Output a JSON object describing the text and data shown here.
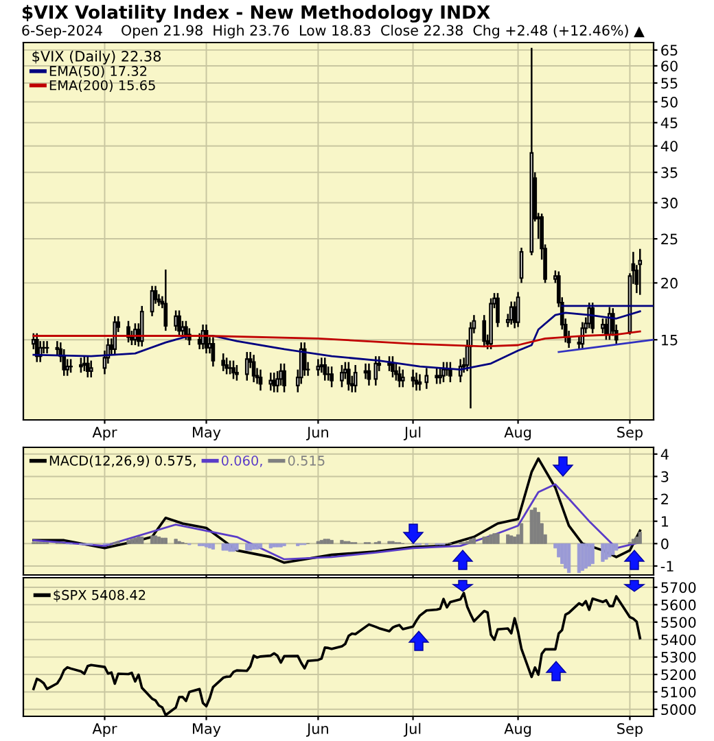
{
  "chart_data": [
    {
      "type": "candlestick",
      "title": "$VIX Volatility Index - New Methodology INDX",
      "subtitle": "6-Sep-2024    Open 21.98  High 23.76  Low 18.83  Close 22.38  Chg +2.48 (+12.46%) ▲",
      "legend_title": "$VIX (Daily) 22.38",
      "log": true,
      "grid": true,
      "legend": "top left",
      "color": "#000000",
      "x": [
        "2024-03-11",
        "2024-03-12",
        "2024-03-13",
        "2024-03-14",
        "2024-03-15",
        "2024-03-18",
        "2024-03-19",
        "2024-03-20",
        "2024-03-21",
        "2024-03-22",
        "2024-03-25",
        "2024-03-26",
        "2024-03-27",
        "2024-03-28",
        "2024-04-01",
        "2024-04-02",
        "2024-04-03",
        "2024-04-04",
        "2024-04-05",
        "2024-04-08",
        "2024-04-09",
        "2024-04-10",
        "2024-04-11",
        "2024-04-12",
        "2024-04-15",
        "2024-04-16",
        "2024-04-17",
        "2024-04-18",
        "2024-04-19",
        "2024-04-22",
        "2024-04-23",
        "2024-04-24",
        "2024-04-25",
        "2024-04-26",
        "2024-04-29",
        "2024-04-30",
        "2024-05-01",
        "2024-05-02",
        "2024-05-03",
        "2024-05-06",
        "2024-05-07",
        "2024-05-08",
        "2024-05-09",
        "2024-05-10",
        "2024-05-13",
        "2024-05-14",
        "2024-05-15",
        "2024-05-16",
        "2024-05-17",
        "2024-05-20",
        "2024-05-21",
        "2024-05-22",
        "2024-05-23",
        "2024-05-24",
        "2024-05-28",
        "2024-05-29",
        "2024-05-30",
        "2024-05-31",
        "2024-06-03",
        "2024-06-04",
        "2024-06-05",
        "2024-06-06",
        "2024-06-07",
        "2024-06-10",
        "2024-06-11",
        "2024-06-12",
        "2024-06-13",
        "2024-06-14",
        "2024-06-17",
        "2024-06-18",
        "2024-06-20",
        "2024-06-21",
        "2024-06-24",
        "2024-06-25",
        "2024-06-26",
        "2024-06-27",
        "2024-06-28",
        "2024-07-01",
        "2024-07-02",
        "2024-07-03",
        "2024-07-05",
        "2024-07-08",
        "2024-07-09",
        "2024-07-10",
        "2024-07-11",
        "2024-07-12",
        "2024-07-15",
        "2024-07-16",
        "2024-07-17",
        "2024-07-18",
        "2024-07-19",
        "2024-07-22",
        "2024-07-23",
        "2024-07-24",
        "2024-07-25",
        "2024-07-26",
        "2024-07-29",
        "2024-07-30",
        "2024-07-31",
        "2024-08-01",
        "2024-08-02",
        "2024-08-05",
        "2024-08-06",
        "2024-08-07",
        "2024-08-08",
        "2024-08-09",
        "2024-08-12",
        "2024-08-13",
        "2024-08-14",
        "2024-08-15",
        "2024-08-16",
        "2024-08-19",
        "2024-08-20",
        "2024-08-21",
        "2024-08-22",
        "2024-08-23",
        "2024-08-26",
        "2024-08-27",
        "2024-08-28",
        "2024-08-29",
        "2024-08-30",
        "2024-09-03",
        "2024-09-04",
        "2024-09-05",
        "2024-09-06"
      ],
      "ohlc": [
        [
          14.7,
          15.5,
          14.3,
          15.0
        ],
        [
          15.0,
          15.5,
          13.4,
          13.8
        ],
        [
          13.8,
          14.9,
          13.4,
          14.4
        ],
        [
          14.4,
          14.9,
          14.0,
          14.4
        ],
        [
          14.4,
          14.9,
          14.0,
          14.4
        ],
        [
          14.4,
          14.9,
          13.9,
          14.3
        ],
        [
          14.3,
          14.8,
          13.4,
          13.8
        ],
        [
          13.8,
          14.3,
          12.5,
          12.9
        ],
        [
          12.9,
          13.6,
          12.5,
          13.1
        ],
        [
          13.1,
          13.6,
          12.7,
          13.1
        ],
        [
          13.1,
          13.7,
          12.7,
          13.2
        ],
        [
          13.2,
          13.8,
          12.8,
          13.3
        ],
        [
          13.3,
          13.8,
          12.4,
          12.8
        ],
        [
          12.8,
          13.5,
          12.4,
          13.0
        ],
        [
          13.0,
          14.2,
          12.6,
          13.7
        ],
        [
          13.7,
          15.1,
          13.3,
          14.6
        ],
        [
          14.6,
          15.1,
          13.9,
          14.3
        ],
        [
          14.3,
          16.9,
          13.9,
          16.4
        ],
        [
          16.4,
          16.9,
          15.6,
          16.0
        ],
        [
          16.0,
          16.5,
          14.8,
          15.2
        ],
        [
          15.2,
          15.7,
          14.6,
          15.0
        ],
        [
          15.0,
          16.3,
          14.6,
          15.8
        ],
        [
          15.8,
          16.3,
          14.5,
          14.9
        ],
        [
          14.9,
          17.8,
          14.5,
          17.3
        ],
        [
          17.3,
          19.7,
          16.9,
          19.2
        ],
        [
          19.2,
          19.7,
          18.0,
          18.4
        ],
        [
          18.4,
          18.9,
          17.8,
          18.2
        ],
        [
          18.2,
          18.7,
          17.6,
          18.0
        ],
        [
          18.0,
          21.4,
          15.7,
          16.1
        ],
        [
          16.1,
          17.4,
          15.7,
          16.9
        ],
        [
          16.9,
          17.4,
          15.3,
          15.7
        ],
        [
          15.7,
          16.5,
          15.3,
          16.0
        ],
        [
          16.0,
          16.5,
          15.0,
          15.4
        ],
        [
          15.4,
          15.9,
          14.6,
          15.0
        ],
        [
          15.0,
          15.5,
          14.3,
          14.7
        ],
        [
          14.7,
          16.2,
          14.3,
          15.7
        ],
        [
          15.7,
          16.2,
          14.0,
          14.4
        ],
        [
          14.4,
          15.2,
          14.0,
          14.7
        ],
        [
          14.7,
          15.2,
          13.1,
          13.5
        ],
        [
          13.5,
          14.0,
          12.8,
          13.2
        ],
        [
          13.2,
          13.7,
          12.6,
          13.0
        ],
        [
          13.0,
          13.5,
          12.6,
          13.0
        ],
        [
          13.0,
          13.5,
          12.3,
          12.7
        ],
        [
          12.7,
          13.2,
          12.2,
          12.6
        ],
        [
          12.6,
          14.1,
          12.2,
          13.6
        ],
        [
          13.6,
          14.1,
          13.0,
          13.4
        ],
        [
          13.4,
          13.9,
          12.1,
          12.5
        ],
        [
          12.5,
          13.0,
          12.0,
          12.4
        ],
        [
          12.4,
          12.9,
          11.6,
          12.0
        ],
        [
          12.0,
          12.7,
          11.6,
          12.2
        ],
        [
          12.2,
          12.7,
          11.5,
          11.9
        ],
        [
          11.9,
          12.8,
          11.5,
          12.3
        ],
        [
          12.3,
          13.3,
          11.9,
          12.8
        ],
        [
          12.8,
          13.3,
          11.5,
          11.9
        ],
        [
          11.9,
          12.9,
          11.5,
          12.4
        ],
        [
          12.4,
          14.8,
          12.0,
          14.3
        ],
        [
          14.3,
          14.8,
          12.5,
          12.9
        ],
        [
          12.9,
          13.4,
          12.5,
          12.9
        ],
        [
          12.9,
          13.6,
          12.5,
          13.1
        ],
        [
          13.1,
          13.7,
          12.7,
          13.2
        ],
        [
          13.2,
          13.7,
          12.2,
          12.6
        ],
        [
          12.6,
          13.1,
          12.2,
          12.6
        ],
        [
          12.6,
          13.1,
          11.8,
          12.2
        ],
        [
          12.2,
          13.2,
          11.8,
          12.7
        ],
        [
          12.7,
          13.4,
          12.3,
          12.9
        ],
        [
          12.9,
          13.4,
          11.6,
          12.0
        ],
        [
          12.0,
          12.5,
          11.5,
          11.9
        ],
        [
          11.9,
          13.2,
          11.5,
          12.7
        ],
        [
          12.7,
          13.3,
          12.3,
          12.8
        ],
        [
          12.8,
          13.3,
          11.9,
          12.3
        ],
        [
          12.3,
          13.8,
          11.9,
          13.3
        ],
        [
          13.3,
          13.8,
          12.8,
          13.2
        ],
        [
          13.2,
          13.8,
          12.8,
          13.3
        ],
        [
          13.3,
          13.8,
          12.4,
          12.8
        ],
        [
          12.8,
          13.3,
          12.2,
          12.6
        ],
        [
          12.6,
          13.1,
          11.8,
          12.2
        ],
        [
          12.2,
          12.9,
          11.8,
          12.4
        ],
        [
          12.4,
          12.9,
          11.8,
          12.2
        ],
        [
          12.2,
          12.7,
          11.6,
          12.0
        ],
        [
          12.0,
          12.6,
          11.6,
          12.1
        ],
        [
          12.1,
          13.0,
          11.7,
          12.5
        ],
        [
          12.5,
          13.0,
          12.0,
          12.4
        ],
        [
          12.4,
          13.0,
          12.0,
          12.5
        ],
        [
          12.5,
          13.4,
          12.1,
          12.9
        ],
        [
          12.9,
          13.4,
          12.5,
          12.9
        ],
        [
          12.9,
          13.4,
          12.1,
          12.5
        ],
        [
          12.5,
          13.6,
          12.1,
          13.1
        ],
        [
          13.1,
          13.7,
          12.7,
          13.2
        ],
        [
          13.2,
          15.0,
          12.8,
          14.5
        ],
        [
          14.5,
          16.4,
          10.6,
          15.9
        ],
        [
          15.9,
          17.0,
          15.5,
          16.5
        ],
        [
          16.5,
          17.0,
          14.5,
          14.9
        ],
        [
          14.9,
          15.4,
          14.3,
          14.7
        ],
        [
          14.7,
          18.5,
          14.3,
          18.0
        ],
        [
          18.0,
          19.0,
          17.6,
          18.5
        ],
        [
          18.5,
          19.0,
          16.0,
          16.4
        ],
        [
          16.4,
          17.1,
          16.0,
          16.6
        ],
        [
          16.6,
          18.2,
          16.2,
          17.7
        ],
        [
          17.7,
          18.2,
          15.9,
          16.4
        ],
        [
          16.4,
          19.1,
          16.0,
          18.6
        ],
        [
          20.5,
          23.9,
          20.0,
          23.4
        ],
        [
          23.4,
          65.7,
          23.0,
          38.6
        ],
        [
          34.0,
          35.0,
          27.3,
          27.7
        ],
        [
          27.7,
          28.5,
          25.0,
          27.9
        ],
        [
          27.9,
          28.4,
          22.5,
          23.8
        ],
        [
          23.8,
          24.3,
          20.0,
          20.4
        ],
        [
          20.4,
          21.3,
          20.0,
          20.7
        ],
        [
          20.7,
          21.2,
          17.7,
          18.1
        ],
        [
          18.1,
          18.6,
          15.8,
          16.2
        ],
        [
          16.2,
          16.7,
          14.8,
          15.2
        ],
        [
          15.2,
          15.7,
          14.4,
          14.8
        ],
        [
          14.8,
          15.3,
          14.3,
          14.7
        ],
        [
          14.7,
          16.4,
          14.3,
          15.9
        ],
        [
          15.9,
          16.8,
          15.5,
          16.3
        ],
        [
          16.3,
          18.1,
          15.9,
          17.6
        ],
        [
          17.6,
          18.1,
          15.5,
          15.9
        ],
        [
          15.9,
          16.7,
          15.5,
          16.2
        ],
        [
          16.2,
          16.7,
          15.0,
          15.4
        ],
        [
          15.4,
          17.7,
          15.0,
          17.1
        ],
        [
          17.1,
          17.6,
          15.3,
          15.7
        ],
        [
          15.7,
          16.2,
          14.6,
          15.0
        ],
        [
          15.6,
          21.0,
          15.4,
          20.7
        ],
        [
          22.0,
          23.4,
          19.9,
          21.3
        ],
        [
          21.3,
          21.9,
          19.0,
          19.9
        ],
        [
          21.98,
          23.76,
          18.83,
          22.38
        ]
      ],
      "series": [
        {
          "name": "EMA(50) 17.32",
          "type": "line",
          "color": "#000080",
          "x": [
            "2024-03-11",
            "2024-03-28",
            "2024-04-10",
            "2024-04-19",
            "2024-04-26",
            "2024-05-03",
            "2024-05-10",
            "2024-05-24",
            "2024-06-07",
            "2024-06-21",
            "2024-07-03",
            "2024-07-15",
            "2024-07-24",
            "2024-08-01",
            "2024-08-05",
            "2024-08-07",
            "2024-08-12",
            "2024-08-15",
            "2024-08-22",
            "2024-08-30",
            "2024-09-06"
          ],
          "values": [
            13.9,
            13.8,
            14.0,
            14.8,
            15.3,
            15.3,
            14.9,
            14.3,
            13.8,
            13.5,
            13.1,
            12.9,
            13.3,
            14.2,
            14.6,
            15.8,
            17.0,
            17.2,
            17.0,
            16.7,
            17.32
          ]
        },
        {
          "name": "EMA(200) 15.65",
          "type": "line",
          "color": "#c00000",
          "x": [
            "2024-03-11",
            "2024-04-15",
            "2024-05-01",
            "2024-06-03",
            "2024-07-01",
            "2024-07-22",
            "2024-08-01",
            "2024-08-09",
            "2024-08-20",
            "2024-08-30",
            "2024-09-06"
          ],
          "values": [
            15.3,
            15.3,
            15.3,
            15.1,
            14.7,
            14.5,
            14.6,
            15.1,
            15.3,
            15.4,
            15.65
          ]
        },
        {
          "type": "line",
          "color": "#000080",
          "x": [
            "2024-08-14",
            "2024-09-10"
          ],
          "values": [
            17.8,
            17.8
          ]
        },
        {
          "type": "line",
          "color": "#3030c0",
          "x": [
            "2024-08-13",
            "2024-09-10"
          ],
          "values": [
            14.1,
            15.0
          ]
        }
      ],
      "xlim": [
        "2024-03-08",
        "2024-09-10"
      ],
      "ylim": [
        10,
        67.5
      ],
      "xticks": [
        {
          "value": "2024-04-01",
          "label": "Apr"
        },
        {
          "value": "2024-05-01",
          "label": "May"
        },
        {
          "value": "2024-06-03",
          "label": "Jun"
        },
        {
          "value": "2024-07-01",
          "label": "Jul"
        },
        {
          "value": "2024-08-01",
          "label": "Aug"
        },
        {
          "value": "2024-09-03",
          "label": "Sep"
        }
      ],
      "yticks": [
        15,
        20,
        25,
        30,
        35,
        40,
        45,
        50,
        55,
        60,
        65
      ]
    },
    {
      "type": "bar",
      "grid": true,
      "legend": "top left",
      "tick_labels": "y",
      "x": [
        "2024-03-11",
        "2024-03-12",
        "2024-03-13",
        "2024-03-14",
        "2024-03-15",
        "2024-03-18",
        "2024-03-19",
        "2024-03-20",
        "2024-03-21",
        "2024-03-22",
        "2024-03-25",
        "2024-03-26",
        "2024-03-27",
        "2024-03-28",
        "2024-04-01",
        "2024-04-02",
        "2024-04-03",
        "2024-04-04",
        "2024-04-05",
        "2024-04-08",
        "2024-04-09",
        "2024-04-10",
        "2024-04-11",
        "2024-04-12",
        "2024-04-15",
        "2024-04-16",
        "2024-04-17",
        "2024-04-18",
        "2024-04-19",
        "2024-04-22",
        "2024-04-23",
        "2024-04-24",
        "2024-04-25",
        "2024-04-26",
        "2024-04-29",
        "2024-04-30",
        "2024-05-01",
        "2024-05-02",
        "2024-05-03",
        "2024-05-06",
        "2024-05-07",
        "2024-05-08",
        "2024-05-09",
        "2024-05-10",
        "2024-05-13",
        "2024-05-14",
        "2024-05-15",
        "2024-05-16",
        "2024-05-17",
        "2024-05-20",
        "2024-05-21",
        "2024-05-22",
        "2024-05-23",
        "2024-05-24",
        "2024-05-28",
        "2024-05-29",
        "2024-05-30",
        "2024-05-31",
        "2024-06-03",
        "2024-06-04",
        "2024-06-05",
        "2024-06-06",
        "2024-06-07",
        "2024-06-10",
        "2024-06-11",
        "2024-06-12",
        "2024-06-13",
        "2024-06-14",
        "2024-06-17",
        "2024-06-18",
        "2024-06-20",
        "2024-06-21",
        "2024-06-24",
        "2024-06-25",
        "2024-06-26",
        "2024-06-27",
        "2024-06-28",
        "2024-07-01",
        "2024-07-02",
        "2024-07-03",
        "2024-07-05",
        "2024-07-08",
        "2024-07-09",
        "2024-07-10",
        "2024-07-11",
        "2024-07-12",
        "2024-07-15",
        "2024-07-16",
        "2024-07-17",
        "2024-07-18",
        "2024-07-19",
        "2024-07-22",
        "2024-07-23",
        "2024-07-24",
        "2024-07-25",
        "2024-07-26",
        "2024-07-29",
        "2024-07-30",
        "2024-07-31",
        "2024-08-01",
        "2024-08-02",
        "2024-08-05",
        "2024-08-06",
        "2024-08-07",
        "2024-08-08",
        "2024-08-09",
        "2024-08-12",
        "2024-08-13",
        "2024-08-14",
        "2024-08-15",
        "2024-08-16",
        "2024-08-19",
        "2024-08-20",
        "2024-08-21",
        "2024-08-22",
        "2024-08-23",
        "2024-08-26",
        "2024-08-27",
        "2024-08-28",
        "2024-08-29",
        "2024-08-30",
        "2024-09-03",
        "2024-09-04",
        "2024-09-05",
        "2024-09-06"
      ],
      "series": [
        {
          "name": "MACD(12,26,9) 0.575,",
          "type": "line",
          "color": "#000000",
          "x": [
            "2024-03-11",
            "2024-03-20",
            "2024-04-01",
            "2024-04-10",
            "2024-04-15",
            "2024-04-19",
            "2024-04-24",
            "2024-05-01",
            "2024-05-10",
            "2024-05-20",
            "2024-05-24",
            "2024-06-07",
            "2024-06-20",
            "2024-07-01",
            "2024-07-10",
            "2024-07-19",
            "2024-07-26",
            "2024-08-01",
            "2024-08-05",
            "2024-08-07",
            "2024-08-12",
            "2024-08-16",
            "2024-08-20",
            "2024-08-26",
            "2024-08-30",
            "2024-09-03",
            "2024-09-06"
          ],
          "values": [
            0.15,
            0.15,
            -0.2,
            0.1,
            0.3,
            1.15,
            0.9,
            0.7,
            -0.3,
            -0.6,
            -0.85,
            -0.5,
            -0.35,
            -0.15,
            -0.1,
            0.3,
            0.9,
            1.1,
            3.2,
            3.8,
            2.5,
            0.8,
            0.0,
            -0.3,
            -0.6,
            -0.3,
            0.575
          ]
        },
        {
          "name": "0.060,",
          "type": "line",
          "color": "#5a3cc8",
          "x": [
            "2024-03-11",
            "2024-04-01",
            "2024-04-22",
            "2024-05-10",
            "2024-05-24",
            "2024-06-07",
            "2024-06-20",
            "2024-07-01",
            "2024-07-15",
            "2024-07-25",
            "2024-08-01",
            "2024-08-07",
            "2024-08-12",
            "2024-08-16",
            "2024-08-22",
            "2024-08-30",
            "2024-09-06"
          ],
          "values": [
            0.15,
            -0.1,
            0.85,
            0.3,
            -0.7,
            -0.6,
            -0.4,
            -0.2,
            -0.1,
            0.4,
            0.8,
            2.3,
            2.65,
            2.0,
            1.0,
            -0.2,
            0.06
          ]
        },
        {
          "name": "0.515",
          "type": "bar",
          "color": "#808080",
          "values": [
            0.05,
            0.05,
            0.05,
            0.05,
            0.05,
            0.03,
            0.02,
            0,
            -0.02,
            -0.03,
            -0.05,
            -0.05,
            -0.05,
            -0.05,
            -0.05,
            -0.03,
            0,
            0.05,
            0.1,
            0.15,
            0.2,
            0.25,
            0.3,
            0.3,
            0.35,
            0.35,
            0.3,
            0.25,
            0.25,
            0.2,
            0.1,
            0.05,
            0,
            -0.05,
            -0.1,
            -0.1,
            -0.15,
            -0.2,
            -0.25,
            -0.3,
            -0.3,
            -0.35,
            -0.35,
            -0.3,
            -0.3,
            -0.3,
            -0.25,
            -0.25,
            -0.2,
            -0.2,
            -0.15,
            -0.15,
            -0.15,
            -0.1,
            -0.1,
            -0.05,
            -0.05,
            0,
            0.1,
            0.15,
            0.2,
            0.2,
            0.15,
            0.15,
            0.1,
            0.1,
            0.05,
            0.05,
            0.05,
            0.05,
            0.05,
            0.1,
            0.1,
            0.1,
            0.05,
            0.05,
            0,
            0,
            -0.05,
            -0.05,
            -0.05,
            -0.05,
            -0.05,
            -0.05,
            0,
            0,
            0.05,
            0.05,
            0.1,
            0.2,
            0.25,
            0.3,
            0.3,
            0.4,
            0.45,
            0.45,
            0.4,
            0.35,
            0.3,
            0.4,
            0.9,
            1.5,
            1.6,
            1.4,
            0.9,
            0.4,
            -0.2,
            -0.6,
            -0.9,
            -1.1,
            -1.3,
            -1.3,
            -1.2,
            -1.1,
            -1.0,
            -0.9,
            -0.8,
            -0.7,
            -0.6,
            -0.5,
            -0.3,
            0.05,
            0.2,
            0.3,
            0.515
          ],
          "colors": [
            "#808080",
            "#808080",
            "#808080",
            "#808080",
            "#808080",
            "#808080",
            "#808080",
            "#808080",
            "#9a9ad6",
            "#9a9ad6",
            "#9a9ad6",
            "#9a9ad6",
            "#9a9ad6",
            "#9a9ad6",
            "#9a9ad6",
            "#9a9ad6",
            "#808080",
            "#808080",
            "#808080",
            "#808080",
            "#808080",
            "#808080",
            "#808080",
            "#808080",
            "#808080",
            "#808080",
            "#808080",
            "#808080",
            "#808080",
            "#808080",
            "#808080",
            "#808080",
            "#808080",
            "#9a9ad6",
            "#9a9ad6",
            "#9a9ad6",
            "#9a9ad6",
            "#9a9ad6",
            "#9a9ad6",
            "#9a9ad6",
            "#9a9ad6",
            "#9a9ad6",
            "#9a9ad6",
            "#9a9ad6",
            "#9a9ad6",
            "#9a9ad6",
            "#9a9ad6",
            "#9a9ad6",
            "#9a9ad6",
            "#9a9ad6",
            "#9a9ad6",
            "#9a9ad6",
            "#9a9ad6",
            "#9a9ad6",
            "#9a9ad6",
            "#9a9ad6",
            "#9a9ad6",
            "#808080",
            "#808080",
            "#808080",
            "#808080",
            "#808080",
            "#808080",
            "#808080",
            "#808080",
            "#808080",
            "#808080",
            "#808080",
            "#808080",
            "#808080",
            "#808080",
            "#808080",
            "#808080",
            "#808080",
            "#808080",
            "#808080",
            "#808080",
            "#808080",
            "#9a9ad6",
            "#9a9ad6",
            "#9a9ad6",
            "#9a9ad6",
            "#9a9ad6",
            "#9a9ad6",
            "#808080",
            "#808080",
            "#808080",
            "#808080",
            "#808080",
            "#808080",
            "#808080",
            "#808080",
            "#808080",
            "#808080",
            "#808080",
            "#808080",
            "#808080",
            "#808080",
            "#808080",
            "#808080",
            "#808080",
            "#808080",
            "#808080",
            "#808080",
            "#808080",
            "#808080",
            "#9a9ad6",
            "#9a9ad6",
            "#9a9ad6",
            "#9a9ad6",
            "#9a9ad6",
            "#9a9ad6",
            "#9a9ad6",
            "#9a9ad6",
            "#9a9ad6",
            "#9a9ad6",
            "#9a9ad6",
            "#9a9ad6",
            "#9a9ad6",
            "#9a9ad6",
            "#9a9ad6",
            "#808080",
            "#808080",
            "#808080",
            "#808080"
          ]
        }
      ],
      "xlim": [
        "2024-03-08",
        "2024-09-10"
      ],
      "ylim": [
        -1.4,
        4.3
      ],
      "yticks": [
        -1,
        0,
        1,
        2,
        3,
        4
      ],
      "xticks": [
        {
          "value": "2024-04-01",
          "label": null
        },
        {
          "value": "2024-05-01",
          "label": null
        },
        {
          "value": "2024-06-03",
          "label": null
        },
        {
          "value": "2024-07-01",
          "label": null
        },
        {
          "value": "2024-08-01",
          "label": null
        },
        {
          "value": "2024-09-03",
          "label": null
        }
      ]
    },
    {
      "type": "line",
      "grid": true,
      "legend": "top left",
      "x": [
        "2024-03-11",
        "2024-03-12",
        "2024-03-13",
        "2024-03-14",
        "2024-03-15",
        "2024-03-18",
        "2024-03-19",
        "2024-03-20",
        "2024-03-21",
        "2024-03-22",
        "2024-03-25",
        "2024-03-26",
        "2024-03-27",
        "2024-03-28",
        "2024-04-01",
        "2024-04-02",
        "2024-04-03",
        "2024-04-04",
        "2024-04-05",
        "2024-04-08",
        "2024-04-09",
        "2024-04-10",
        "2024-04-11",
        "2024-04-12",
        "2024-04-15",
        "2024-04-16",
        "2024-04-17",
        "2024-04-18",
        "2024-04-19",
        "2024-04-22",
        "2024-04-23",
        "2024-04-24",
        "2024-04-25",
        "2024-04-26",
        "2024-04-29",
        "2024-04-30",
        "2024-05-01",
        "2024-05-02",
        "2024-05-03",
        "2024-05-06",
        "2024-05-07",
        "2024-05-08",
        "2024-05-09",
        "2024-05-10",
        "2024-05-13",
        "2024-05-14",
        "2024-05-15",
        "2024-05-16",
        "2024-05-17",
        "2024-05-20",
        "2024-05-21",
        "2024-05-22",
        "2024-05-23",
        "2024-05-24",
        "2024-05-28",
        "2024-05-29",
        "2024-05-30",
        "2024-05-31",
        "2024-06-03",
        "2024-06-04",
        "2024-06-05",
        "2024-06-06",
        "2024-06-07",
        "2024-06-10",
        "2024-06-11",
        "2024-06-12",
        "2024-06-13",
        "2024-06-14",
        "2024-06-17",
        "2024-06-18",
        "2024-06-20",
        "2024-06-21",
        "2024-06-24",
        "2024-06-25",
        "2024-06-26",
        "2024-06-27",
        "2024-06-28",
        "2024-07-01",
        "2024-07-02",
        "2024-07-03",
        "2024-07-05",
        "2024-07-08",
        "2024-07-09",
        "2024-07-10",
        "2024-07-11",
        "2024-07-12",
        "2024-07-15",
        "2024-07-16",
        "2024-07-17",
        "2024-07-18",
        "2024-07-19",
        "2024-07-22",
        "2024-07-23",
        "2024-07-24",
        "2024-07-25",
        "2024-07-26",
        "2024-07-29",
        "2024-07-30",
        "2024-07-31",
        "2024-08-01",
        "2024-08-02",
        "2024-08-05",
        "2024-08-06",
        "2024-08-07",
        "2024-08-08",
        "2024-08-09",
        "2024-08-12",
        "2024-08-13",
        "2024-08-14",
        "2024-08-15",
        "2024-08-16",
        "2024-08-19",
        "2024-08-20",
        "2024-08-21",
        "2024-08-22",
        "2024-08-23",
        "2024-08-26",
        "2024-08-27",
        "2024-08-28",
        "2024-08-29",
        "2024-08-30",
        "2024-09-03",
        "2024-09-04",
        "2024-09-05",
        "2024-09-06"
      ],
      "series": [
        {
          "name": "$SPX 5408.42",
          "color": "#000000",
          "values": [
            5117,
            5175,
            5165,
            5150,
            5117,
            5149,
            5179,
            5224,
            5241,
            5234,
            5218,
            5204,
            5248,
            5254,
            5243,
            5205,
            5211,
            5147,
            5204,
            5202,
            5209,
            5160,
            5199,
            5123,
            5061,
            5051,
            5022,
            5011,
            4967,
            5010,
            5070,
            5071,
            5048,
            5100,
            5116,
            5036,
            5018,
            5064,
            5128,
            5181,
            5187,
            5188,
            5214,
            5223,
            5221,
            5247,
            5308,
            5297,
            5303,
            5308,
            5321,
            5307,
            5268,
            5305,
            5306,
            5267,
            5235,
            5278,
            5283,
            5291,
            5354,
            5352,
            5347,
            5361,
            5375,
            5421,
            5434,
            5431,
            5473,
            5487,
            5473,
            5465,
            5448,
            5469,
            5478,
            5483,
            5460,
            5475,
            5509,
            5537,
            5567,
            5572,
            5577,
            5633,
            5585,
            5615,
            5631,
            5667,
            5589,
            5545,
            5505,
            5564,
            5556,
            5427,
            5399,
            5459,
            5464,
            5436,
            5522,
            5446,
            5347,
            5186,
            5240,
            5199,
            5319,
            5344,
            5344,
            5435,
            5455,
            5543,
            5554,
            5608,
            5597,
            5621,
            5571,
            5635,
            5616,
            5626,
            5592,
            5592,
            5648,
            5529,
            5520,
            5503,
            5408
          ]
        }
      ],
      "xlim": [
        "2024-03-08",
        "2024-09-10"
      ],
      "ylim": [
        4960,
        5755
      ],
      "yticks": [
        5000,
        5100,
        5200,
        5300,
        5400,
        5500,
        5600,
        5700
      ],
      "xticks": [
        {
          "value": "2024-04-01",
          "label": "Apr"
        },
        {
          "value": "2024-05-01",
          "label": "May"
        },
        {
          "value": "2024-06-03",
          "label": "Jun"
        },
        {
          "value": "2024-07-01",
          "label": "Jul"
        },
        {
          "value": "2024-08-01",
          "label": "Aug"
        },
        {
          "value": "2024-09-03",
          "label": "Sep"
        }
      ]
    }
  ]
}
